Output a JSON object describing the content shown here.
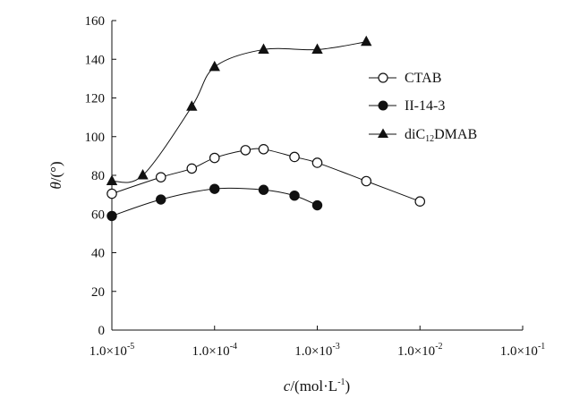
{
  "chart_data": {
    "type": "scatter",
    "x_scale": "log",
    "xlim": [
      1e-05,
      0.1
    ],
    "ylim": [
      0,
      160
    ],
    "grid": false,
    "legend_position": "right",
    "x_tick_values": [
      1e-05,
      0.0001,
      0.001,
      0.01,
      0.1
    ],
    "x_tick_labels": [
      {
        "mantissa": "1.0×10",
        "exp": "-5"
      },
      {
        "mantissa": "1.0×10",
        "exp": "-4"
      },
      {
        "mantissa": "1.0×10",
        "exp": "-3"
      },
      {
        "mantissa": "1.0×10",
        "exp": "-2"
      },
      {
        "mantissa": "1.0×10",
        "exp": "-1"
      }
    ],
    "y_ticks": [
      0,
      20,
      40,
      60,
      80,
      100,
      120,
      140,
      160
    ],
    "ylabel": {
      "symbol": "θ",
      "unit": "/(°)"
    },
    "xlabel": {
      "symbol": "c",
      "unit": "/(mol·L",
      "exp": "-1",
      "close": ")"
    },
    "series": [
      {
        "name": "CTAB",
        "marker": "circle-open",
        "line": "smooth",
        "x": [
          1e-05,
          3e-05,
          6e-05,
          0.0001,
          0.0002,
          0.0003,
          0.0006,
          0.001,
          0.003,
          0.01
        ],
        "y": [
          70.5,
          79,
          83.5,
          89,
          93,
          93.5,
          89.5,
          86.5,
          77,
          66.5
        ]
      },
      {
        "name": "II-14-3",
        "marker": "circle-filled",
        "line": "smooth",
        "x": [
          1e-05,
          3e-05,
          0.0001,
          0.0003,
          0.0006,
          0.001
        ],
        "y": [
          59,
          67.5,
          73,
          72.5,
          69.5,
          64.5
        ]
      },
      {
        "name_parts": {
          "a": "diC",
          "sub": "12",
          "b": "DMAB"
        },
        "marker": "triangle-filled",
        "line": "smooth",
        "x": [
          1e-05,
          2e-05,
          6e-05,
          0.0001,
          0.0003,
          0.001,
          0.003
        ],
        "y": [
          77,
          80,
          115.5,
          136,
          145,
          145,
          149
        ]
      }
    ]
  }
}
